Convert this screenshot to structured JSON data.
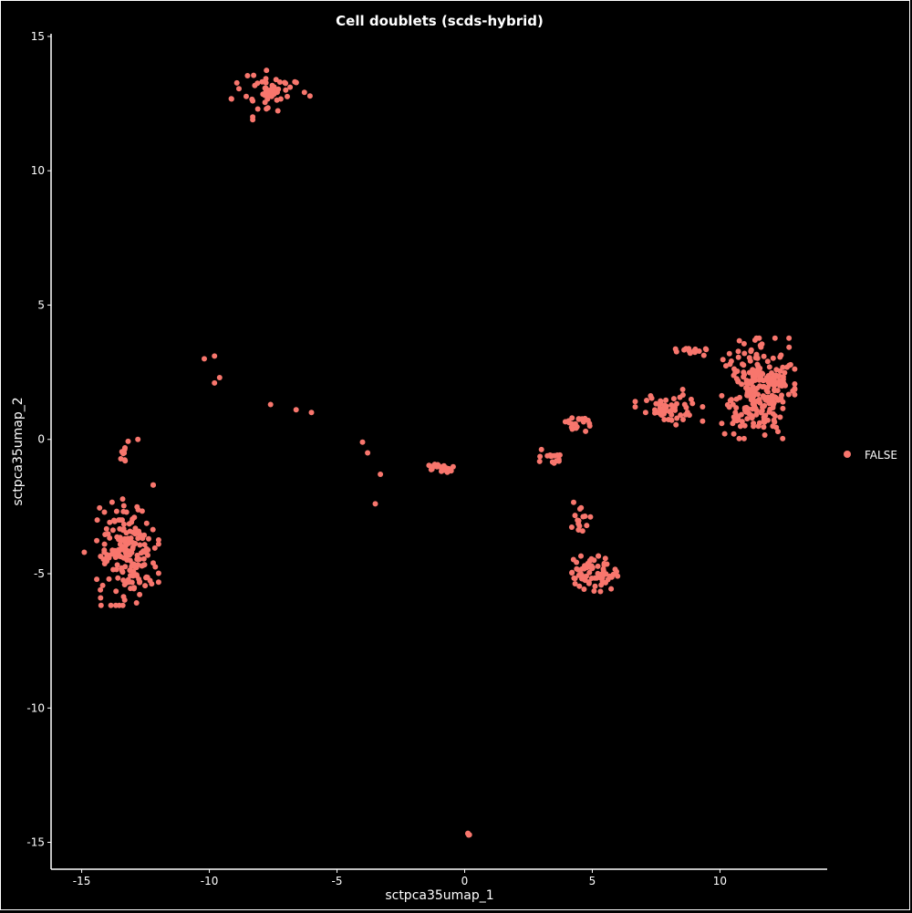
{
  "chart_data": {
    "type": "scatter",
    "title": "Cell doublets (scds-hybrid)",
    "xlabel": "sctpca35umap_1",
    "ylabel": "sctpca35umap_2",
    "xlim": [
      -16.2,
      14.2
    ],
    "ylim": [
      -16.0,
      15.1
    ],
    "xticks": [
      -15,
      -10,
      -5,
      0,
      5,
      10
    ],
    "yticks": [
      15,
      10,
      5,
      0,
      -5,
      -10,
      -15
    ],
    "grid": false,
    "background": "#000000",
    "axis_color": "#ffffff",
    "legend": {
      "placement": "right",
      "entries": [
        {
          "label": "FALSE",
          "color": "#F8766D"
        }
      ]
    },
    "series": [
      {
        "name": "FALSE",
        "color": "#F8766D",
        "clusters": [
          {
            "center": [
              -7.6,
              13.0
            ],
            "spread": [
              0.7,
              0.35
            ],
            "n": 55
          },
          {
            "center": [
              -13.2,
              -4.2
            ],
            "spread": [
              0.55,
              0.9
            ],
            "n": 180
          },
          {
            "center": [
              -13.3,
              -0.4
            ],
            "spread": [
              0.1,
              0.2
            ],
            "n": 8
          },
          {
            "center": [
              -1.0,
              -1.05
            ],
            "spread": [
              0.25,
              0.08
            ],
            "n": 25
          },
          {
            "center": [
              0.15,
              -14.75
            ],
            "spread": [
              0.06,
              0.05
            ],
            "n": 4
          },
          {
            "center": [
              3.3,
              -0.7
            ],
            "spread": [
              0.25,
              0.15
            ],
            "n": 16
          },
          {
            "center": [
              4.3,
              0.6
            ],
            "spread": [
              0.4,
              0.18
            ],
            "n": 20
          },
          {
            "center": [
              4.5,
              -3.0
            ],
            "spread": [
              0.2,
              0.3
            ],
            "n": 15
          },
          {
            "center": [
              5.0,
              -5.0
            ],
            "spread": [
              0.45,
              0.3
            ],
            "n": 70
          },
          {
            "center": [
              8.0,
              1.2
            ],
            "spread": [
              0.6,
              0.3
            ],
            "n": 55
          },
          {
            "center": [
              8.9,
              3.35
            ],
            "spread": [
              0.35,
              0.1
            ],
            "n": 14
          },
          {
            "center": [
              11.5,
              1.9
            ],
            "spread": [
              0.65,
              0.85
            ],
            "n": 260
          }
        ],
        "points": [
          [
            -12.2,
            -1.7
          ],
          [
            -13.3,
            -0.8
          ],
          [
            -3.8,
            -0.5
          ],
          [
            -3.3,
            -1.3
          ],
          [
            -3.5,
            -2.4
          ],
          [
            -6.0,
            1.0
          ],
          [
            -6.6,
            1.1
          ],
          [
            -7.6,
            1.3
          ],
          [
            -4.0,
            -0.1
          ],
          [
            -9.6,
            2.3
          ],
          [
            -9.8,
            2.1
          ],
          [
            -10.2,
            3.0
          ],
          [
            -9.8,
            3.1
          ],
          [
            -12.8,
            0.0
          ],
          [
            -8.3,
            12.0
          ],
          [
            -8.3,
            11.9
          ],
          [
            -8.1,
            12.3
          ],
          [
            -14.9,
            -4.2
          ],
          [
            -12.2,
            -4.6
          ],
          [
            -12.2,
            -1.7
          ]
        ]
      }
    ]
  }
}
